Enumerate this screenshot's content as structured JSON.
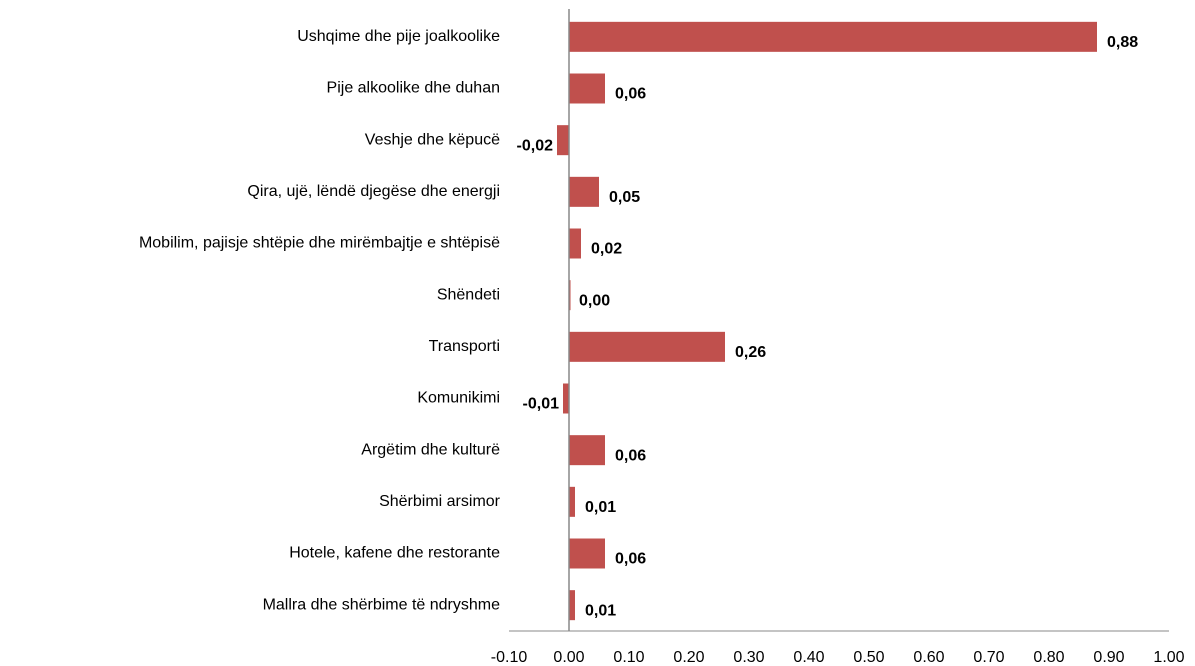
{
  "chart_data": {
    "type": "barh",
    "categories": [
      "Ushqime dhe pije joalkoolike",
      "Pije alkoolike dhe duhan",
      "Veshje dhe këpucë",
      "Qira, ujë, lëndë djegëse dhe energji",
      "Mobilim, pajisje shtëpie dhe mirëmbajtje e shtëpisë",
      "Shëndeti",
      "Transporti",
      "Komunikimi",
      "Argëtim dhe kulturë",
      "Shërbimi arsimor",
      "Hotele, kafene dhe restorante",
      "Mallra dhe shërbime të ndryshme"
    ],
    "values": [
      0.88,
      0.06,
      -0.02,
      0.05,
      0.02,
      0.0,
      0.26,
      -0.01,
      0.06,
      0.01,
      0.06,
      0.01
    ],
    "value_labels": [
      "0,88",
      "0,06",
      "-0,02",
      "0,05",
      "0,02",
      "0,00",
      "0,26",
      "-0,01",
      "0,06",
      "0,01",
      "0,06",
      "0,01"
    ],
    "color": "#c0504d",
    "xlim": [
      -0.1,
      1.0
    ],
    "xticks": [
      {
        "value": -0.1,
        "label": "-0.10"
      },
      {
        "value": 0,
        "label": "0.00"
      },
      {
        "value": 0.1,
        "label": "0.10"
      },
      {
        "value": 0.2,
        "label": "0.20"
      },
      {
        "value": 0.3,
        "label": "0.30"
      },
      {
        "value": 0.4,
        "label": "0.40"
      },
      {
        "value": 0.5,
        "label": "0.50"
      },
      {
        "value": 0.6,
        "label": "0.60"
      },
      {
        "value": 0.7,
        "label": "0.70"
      },
      {
        "value": 0.8,
        "label": "0.80"
      },
      {
        "value": 0.9,
        "label": "0.90"
      },
      {
        "value": 1.0,
        "label": "1.00"
      }
    ],
    "grid": false
  }
}
